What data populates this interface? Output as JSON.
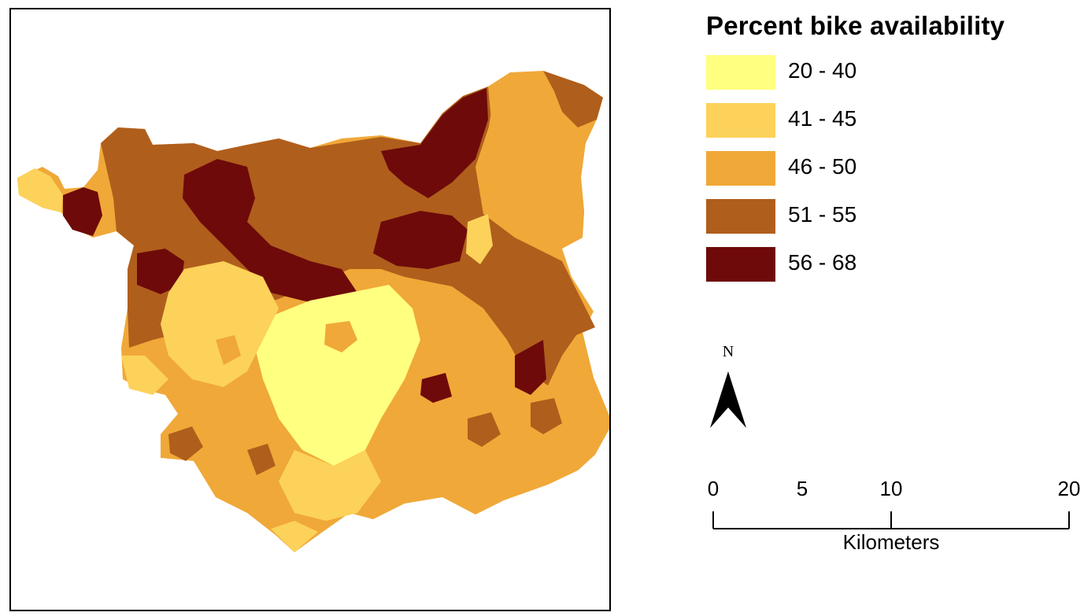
{
  "legend": {
    "title": "Percent bike availability",
    "classes": [
      {
        "label": "20 - 40",
        "color": "#ffff80"
      },
      {
        "label": "41 - 45",
        "color": "#fcd25a"
      },
      {
        "label": "46 - 50",
        "color": "#f0a838"
      },
      {
        "label": "51 - 55",
        "color": "#b05e1c"
      },
      {
        "label": "56 - 68",
        "color": "#6e0a0a"
      }
    ]
  },
  "north_arrow": {
    "label": "N"
  },
  "scale_bar": {
    "unit": "Kilometers",
    "ticks": [
      "0",
      "5",
      "10",
      "20"
    ]
  }
}
